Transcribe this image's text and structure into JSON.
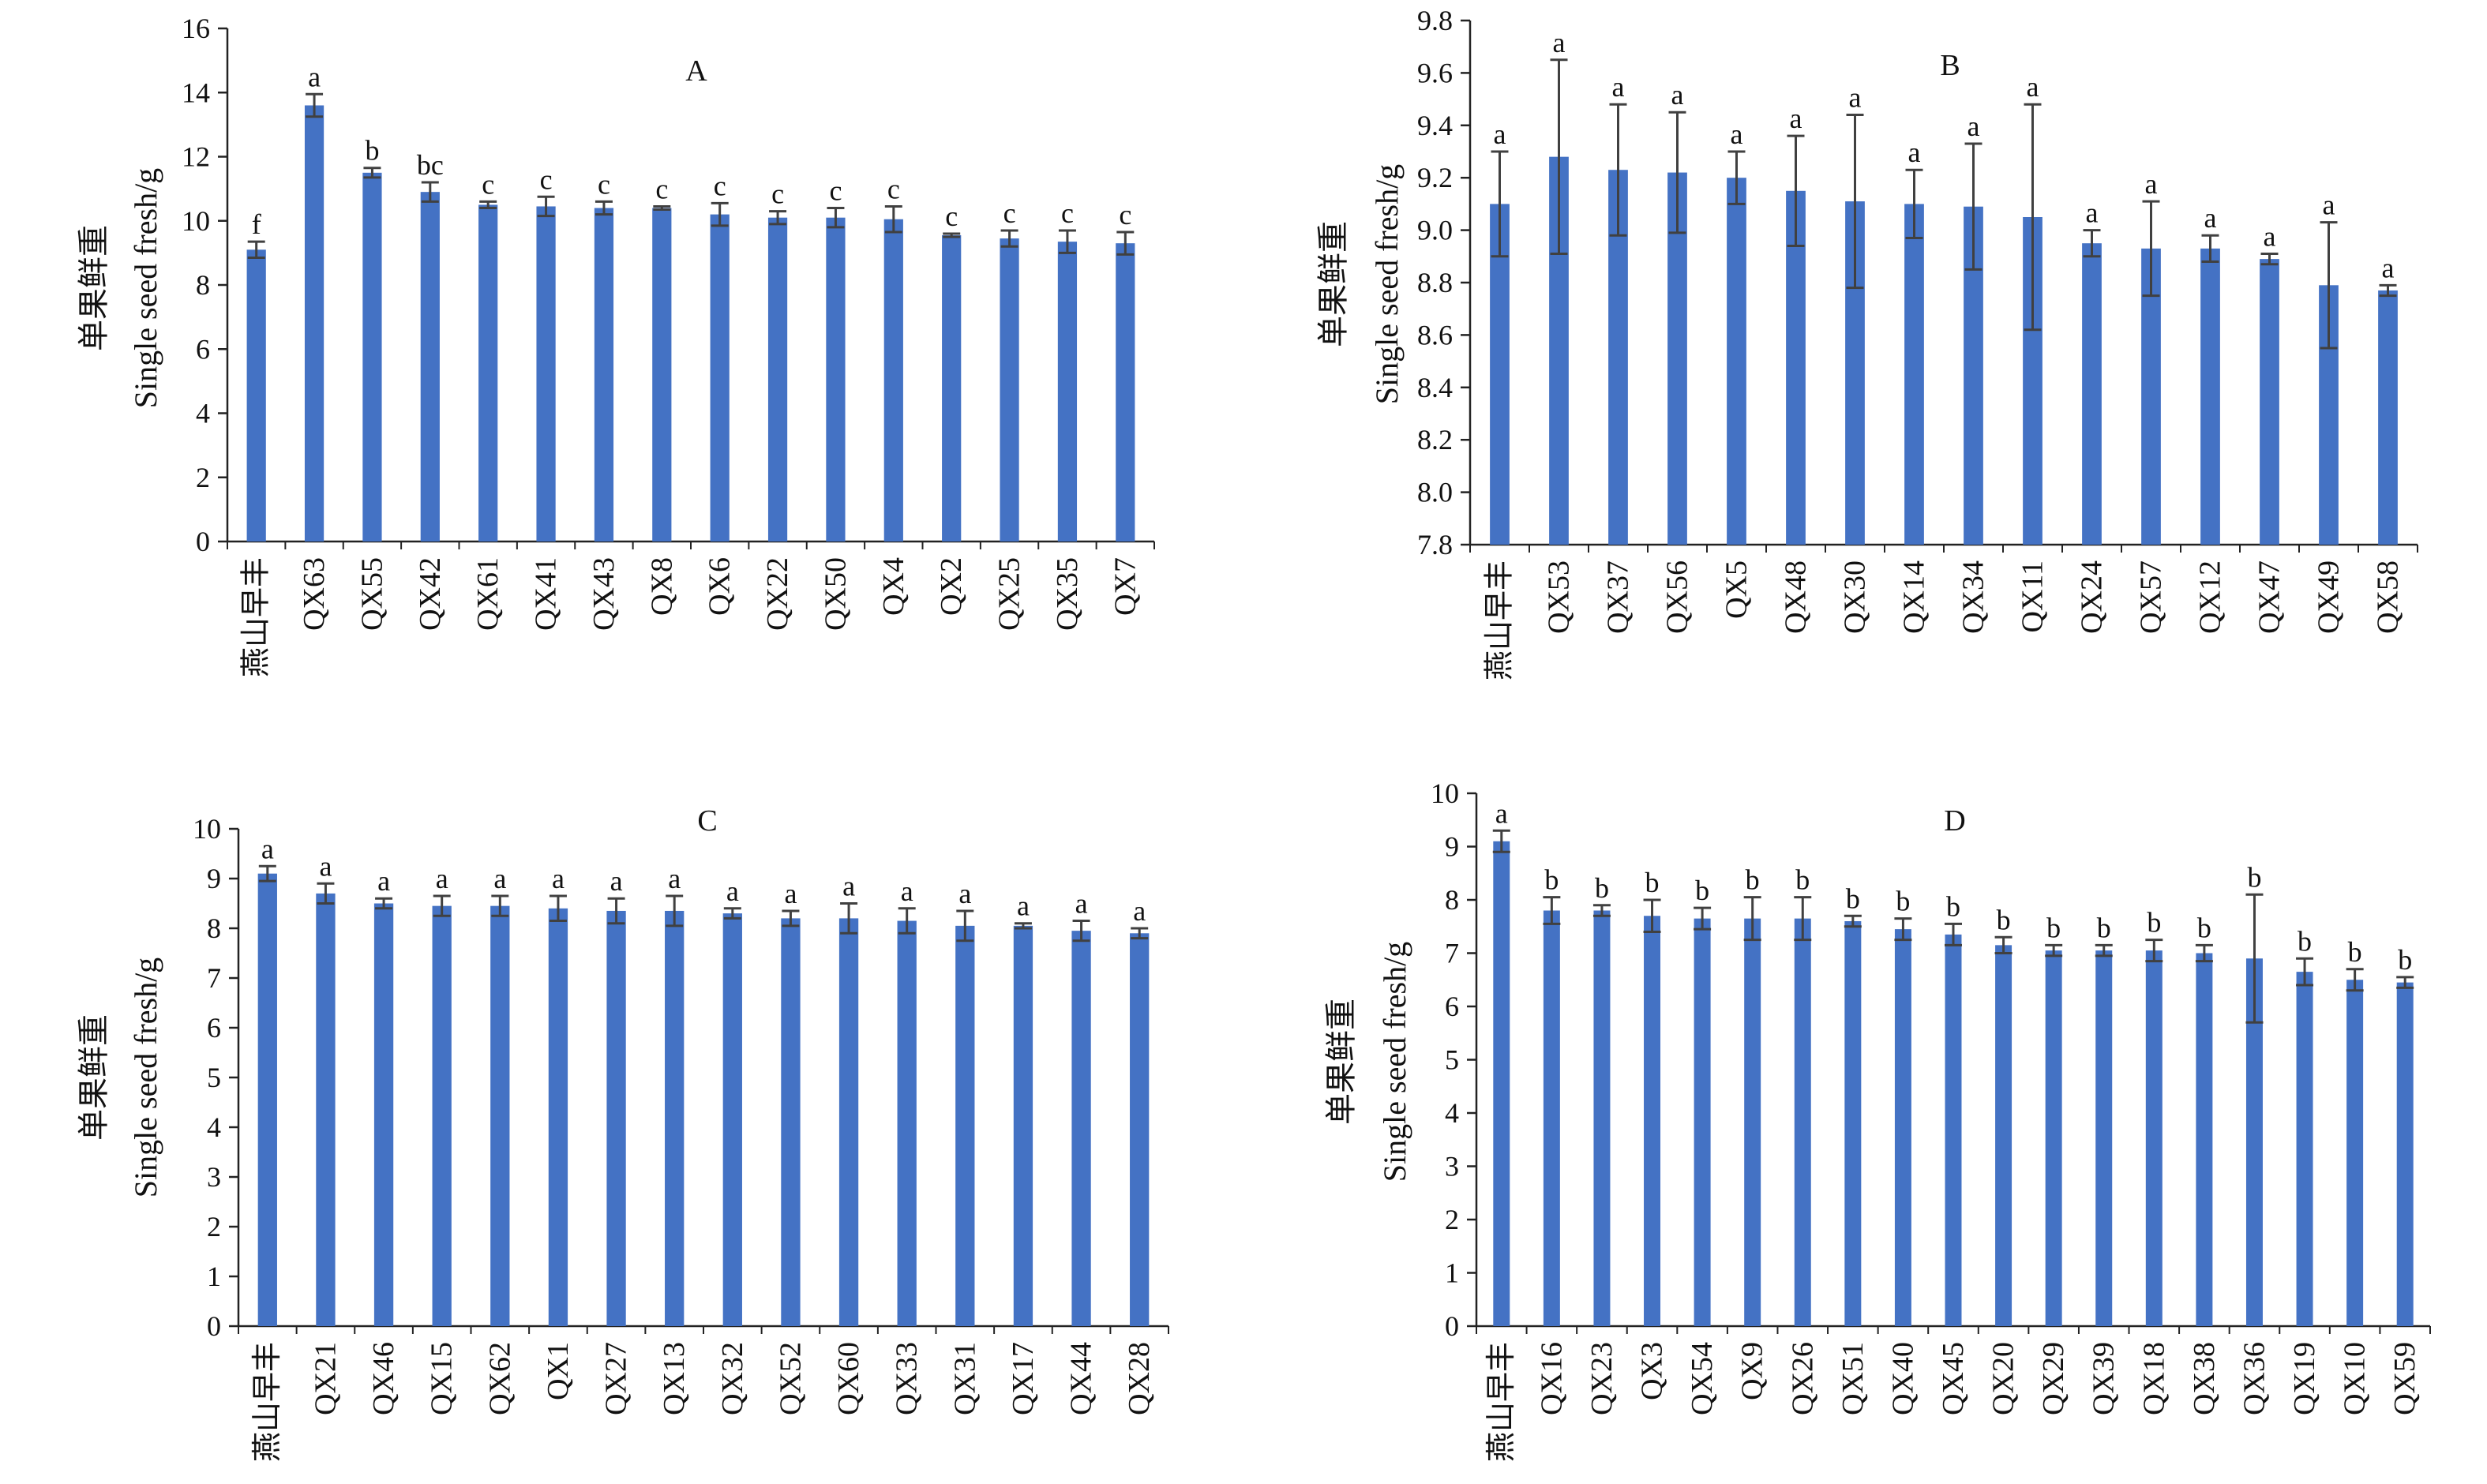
{
  "chart_data": [
    {
      "panel": "A",
      "type": "bar",
      "title": "A",
      "ylabel_cn": "单果鲜重",
      "ylabel": "Single seed fresh/g",
      "xlabel": "",
      "ylim": [
        0,
        16
      ],
      "ytick_step": 2,
      "ytick_decimals": 0,
      "grid": false,
      "legend": "none",
      "bar_color": "#4472C4",
      "error_color": "#404040",
      "categories": [
        "燕山早丰",
        "QX63",
        "QX55",
        "QX42",
        "QX61",
        "QX41",
        "QX43",
        "QX8",
        "QX6",
        "QX22",
        "QX50",
        "QX4",
        "QX2",
        "QX25",
        "QX35",
        "QX7"
      ],
      "values": [
        9.1,
        13.6,
        11.5,
        10.9,
        10.5,
        10.45,
        10.4,
        10.4,
        10.2,
        10.1,
        10.1,
        10.05,
        9.55,
        9.45,
        9.35,
        9.3
      ],
      "errors": [
        0.25,
        0.35,
        0.15,
        0.3,
        0.1,
        0.3,
        0.2,
        0.05,
        0.35,
        0.2,
        0.3,
        0.4,
        0.05,
        0.25,
        0.35,
        0.35
      ],
      "letters": [
        "f",
        "a",
        "b",
        "bc",
        "c",
        "c",
        "c",
        "c",
        "c",
        "c",
        "c",
        "c",
        "c",
        "c",
        "c",
        "c"
      ]
    },
    {
      "panel": "B",
      "type": "bar",
      "title": "B",
      "ylabel_cn": "单果鲜重",
      "ylabel": "Single seed fresh/g",
      "xlabel": "",
      "ylim": [
        7.8,
        9.8
      ],
      "ytick_step": 0.2,
      "ytick_decimals": 1,
      "grid": false,
      "legend": "none",
      "bar_color": "#4472C4",
      "error_color": "#404040",
      "categories": [
        "燕山早丰",
        "QX53",
        "QX37",
        "QX56",
        "QX5",
        "QX48",
        "QX30",
        "QX14",
        "QX34",
        "QX11",
        "QX24",
        "QX57",
        "QX12",
        "QX47",
        "QX49",
        "QX58"
      ],
      "values": [
        9.1,
        9.28,
        9.23,
        9.22,
        9.2,
        9.15,
        9.11,
        9.1,
        9.09,
        9.05,
        8.95,
        8.93,
        8.93,
        8.89,
        8.79,
        8.77
      ],
      "errors": [
        0.2,
        0.37,
        0.25,
        0.23,
        0.1,
        0.21,
        0.33,
        0.13,
        0.24,
        0.43,
        0.05,
        0.18,
        0.05,
        0.02,
        0.24,
        0.02
      ],
      "letters": [
        "a",
        "a",
        "a",
        "a",
        "a",
        "a",
        "a",
        "a",
        "a",
        "a",
        "a",
        "a",
        "a",
        "a",
        "a",
        "a"
      ]
    },
    {
      "panel": "C",
      "type": "bar",
      "title": "C",
      "ylabel_cn": "单果鲜重",
      "ylabel": "Single seed fresh/g",
      "xlabel": "",
      "ylim": [
        0,
        10
      ],
      "ytick_step": 1,
      "ytick_decimals": 0,
      "grid": false,
      "legend": "none",
      "bar_color": "#4472C4",
      "error_color": "#404040",
      "categories": [
        "燕山早丰",
        "QX21",
        "QX46",
        "QX15",
        "QX62",
        "QX1",
        "QX27",
        "QX13",
        "QX32",
        "QX52",
        "QX60",
        "QX33",
        "QX31",
        "QX17",
        "QX44",
        "QX28"
      ],
      "values": [
        9.1,
        8.7,
        8.5,
        8.45,
        8.45,
        8.4,
        8.35,
        8.35,
        8.3,
        8.2,
        8.2,
        8.15,
        8.05,
        8.05,
        7.95,
        7.9
      ],
      "errors": [
        0.15,
        0.2,
        0.1,
        0.2,
        0.2,
        0.25,
        0.25,
        0.3,
        0.1,
        0.15,
        0.3,
        0.25,
        0.3,
        0.05,
        0.2,
        0.1
      ],
      "letters": [
        "a",
        "a",
        "a",
        "a",
        "a",
        "a",
        "a",
        "a",
        "a",
        "a",
        "a",
        "a",
        "a",
        "a",
        "a",
        "a"
      ]
    },
    {
      "panel": "D",
      "type": "bar",
      "title": "D",
      "ylabel_cn": "单果鲜重",
      "ylabel": "Single seed fresh/g",
      "xlabel": "",
      "ylim": [
        0,
        10
      ],
      "ytick_step": 1,
      "ytick_decimals": 0,
      "grid": false,
      "legend": "none",
      "bar_color": "#4472C4",
      "error_color": "#404040",
      "categories": [
        "燕山早丰",
        "QX16",
        "QX23",
        "QX3",
        "QX54",
        "QX9",
        "QX26",
        "QX51",
        "QX40",
        "QX45",
        "QX20",
        "QX29",
        "QX39",
        "QX18",
        "QX38",
        "QX36",
        "QX19",
        "QX10",
        "QX59"
      ],
      "values": [
        9.1,
        7.8,
        7.8,
        7.7,
        7.65,
        7.65,
        7.65,
        7.6,
        7.45,
        7.35,
        7.15,
        7.05,
        7.05,
        7.05,
        7.0,
        6.9,
        6.65,
        6.5,
        6.45
      ],
      "errors": [
        0.2,
        0.25,
        0.1,
        0.3,
        0.2,
        0.4,
        0.4,
        0.1,
        0.2,
        0.2,
        0.15,
        0.1,
        0.1,
        0.2,
        0.15,
        1.2,
        0.25,
        0.2,
        0.1
      ],
      "letters": [
        "a",
        "b",
        "b",
        "b",
        "b",
        "b",
        "b",
        "b",
        "b",
        "b",
        "b",
        "b",
        "b",
        "b",
        "b",
        "b",
        "b",
        "b",
        "b"
      ]
    }
  ]
}
